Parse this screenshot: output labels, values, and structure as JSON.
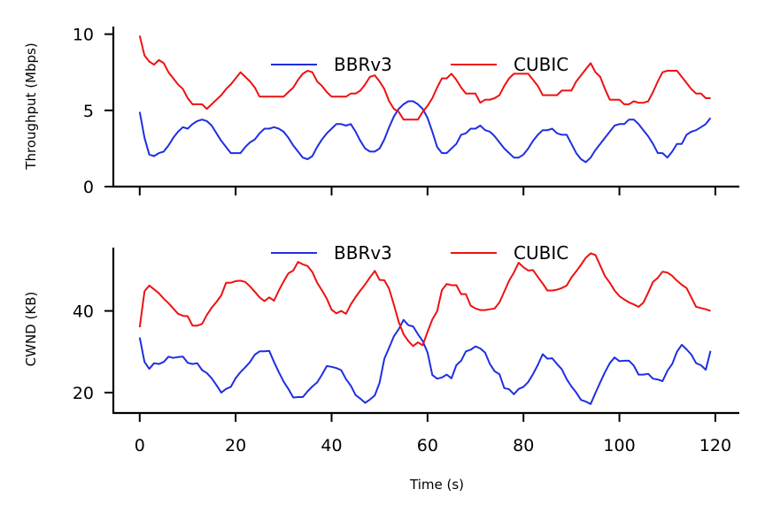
{
  "chart_data": [
    {
      "type": "line",
      "panel": "top",
      "ylabel": "Throughput (Mbps)",
      "xlabel": "",
      "xlim": [
        -5.5,
        125
      ],
      "ylim": [
        0,
        10.5
      ],
      "yticks": [
        0,
        5,
        10
      ],
      "ytick_labels": [
        "0",
        "5",
        "10"
      ],
      "xticks": [
        0,
        20,
        40,
        60,
        80,
        100,
        120
      ],
      "show_xtick_labels": false,
      "legend": {
        "placement": "top-center",
        "columns": 2
      },
      "series": [
        {
          "name": "BBRv3",
          "color": "#1f2fe0",
          "x": [
            0,
            1,
            2,
            3,
            4,
            5,
            6,
            7,
            8,
            9,
            10,
            11,
            12,
            13,
            14,
            15,
            16,
            17,
            18,
            19,
            20,
            21,
            22,
            23,
            24,
            25,
            26,
            27,
            28,
            29,
            30,
            31,
            32,
            33,
            34,
            35,
            36,
            37,
            38,
            39,
            40,
            41,
            42,
            43,
            44,
            45,
            46,
            47,
            48,
            49,
            50,
            51,
            52,
            53,
            54,
            55,
            56,
            57,
            58,
            59,
            60,
            61,
            62,
            63,
            64,
            65,
            66,
            67,
            68,
            69,
            70,
            71,
            72,
            73,
            74,
            75,
            76,
            77,
            78,
            79,
            80,
            81,
            82,
            83,
            84,
            85,
            86,
            87,
            88,
            89,
            90,
            91,
            92,
            93,
            94,
            95,
            96,
            97,
            98,
            99,
            100,
            101,
            102,
            103,
            104,
            105,
            106,
            107,
            108,
            109,
            110,
            111,
            112,
            113,
            114,
            115,
            116,
            117,
            118,
            119
          ],
          "values": [
            4.9,
            3.2,
            2.1,
            2.0,
            2.2,
            2.3,
            2.7,
            3.2,
            3.6,
            3.9,
            3.8,
            4.1,
            4.3,
            4.4,
            4.3,
            4.0,
            3.5,
            3.0,
            2.6,
            2.2,
            2.2,
            2.2,
            2.6,
            2.9,
            3.1,
            3.5,
            3.8,
            3.8,
            3.9,
            3.8,
            3.6,
            3.2,
            2.7,
            2.3,
            1.9,
            1.8,
            2.0,
            2.6,
            3.1,
            3.5,
            3.8,
            4.1,
            4.1,
            4.0,
            4.1,
            3.6,
            3.0,
            2.5,
            2.3,
            2.3,
            2.5,
            3.1,
            3.9,
            4.6,
            5.1,
            5.4,
            5.6,
            5.6,
            5.4,
            5.1,
            4.5,
            3.6,
            2.6,
            2.2,
            2.2,
            2.5,
            2.8,
            3.4,
            3.5,
            3.8,
            3.8,
            4.0,
            3.7,
            3.6,
            3.3,
            2.9,
            2.5,
            2.2,
            1.9,
            1.9,
            2.1,
            2.5,
            3.0,
            3.4,
            3.7,
            3.7,
            3.8,
            3.5,
            3.4,
            3.4,
            2.8,
            2.2,
            1.8,
            1.6,
            1.9,
            2.4,
            2.8,
            3.2,
            3.6,
            4.0,
            4.1,
            4.1,
            4.4,
            4.4,
            4.1,
            3.7,
            3.3,
            2.8,
            2.2,
            2.2,
            1.9,
            2.3,
            2.8,
            2.8,
            3.4,
            3.6,
            3.7,
            3.9,
            4.1,
            4.5
          ]
        },
        {
          "name": "CUBIC",
          "color": "#ee1111",
          "x": [
            0,
            1,
            2,
            3,
            4,
            5,
            6,
            7,
            8,
            9,
            10,
            11,
            12,
            13,
            14,
            15,
            16,
            17,
            18,
            19,
            20,
            21,
            22,
            23,
            24,
            25,
            26,
            27,
            28,
            29,
            30,
            31,
            32,
            33,
            34,
            35,
            36,
            37,
            38,
            39,
            40,
            41,
            42,
            43,
            44,
            45,
            46,
            47,
            48,
            49,
            50,
            51,
            52,
            53,
            54,
            55,
            56,
            57,
            58,
            59,
            60,
            61,
            62,
            63,
            64,
            65,
            66,
            67,
            68,
            69,
            70,
            71,
            72,
            73,
            74,
            75,
            76,
            77,
            78,
            79,
            80,
            81,
            82,
            83,
            84,
            85,
            86,
            87,
            88,
            89,
            90,
            91,
            92,
            93,
            94,
            95,
            96,
            97,
            98,
            99,
            100,
            101,
            102,
            103,
            104,
            105,
            106,
            107,
            108,
            109,
            110,
            111,
            112,
            113,
            114,
            115,
            116,
            117,
            118,
            119
          ],
          "values": [
            9.9,
            8.6,
            8.2,
            8.0,
            8.3,
            8.1,
            7.5,
            7.1,
            6.7,
            6.4,
            5.8,
            5.4,
            5.4,
            5.4,
            5.1,
            5.4,
            5.7,
            6.0,
            6.4,
            6.7,
            7.1,
            7.5,
            7.2,
            6.9,
            6.5,
            5.9,
            5.9,
            5.9,
            5.9,
            5.9,
            5.9,
            6.2,
            6.5,
            7.0,
            7.4,
            7.6,
            7.5,
            6.9,
            6.6,
            6.2,
            5.9,
            5.9,
            5.9,
            5.9,
            6.1,
            6.1,
            6.3,
            6.7,
            7.2,
            7.3,
            6.9,
            6.4,
            5.6,
            5.1,
            4.9,
            4.4,
            4.4,
            4.4,
            4.4,
            4.9,
            5.3,
            5.8,
            6.5,
            7.1,
            7.1,
            7.4,
            7.0,
            6.5,
            6.1,
            6.1,
            6.1,
            5.5,
            5.7,
            5.7,
            5.8,
            6.0,
            6.6,
            7.1,
            7.4,
            7.4,
            7.4,
            7.4,
            7.0,
            6.6,
            6.0,
            6.0,
            6.0,
            6.0,
            6.3,
            6.3,
            6.3,
            6.9,
            7.3,
            7.7,
            8.1,
            7.5,
            7.2,
            6.4,
            5.7,
            5.7,
            5.7,
            5.4,
            5.4,
            5.6,
            5.5,
            5.5,
            5.6,
            6.2,
            6.9,
            7.5,
            7.6,
            7.6,
            7.6,
            7.2,
            6.8,
            6.4,
            6.1,
            6.1,
            5.8,
            5.8
          ]
        }
      ]
    },
    {
      "type": "line",
      "panel": "bottom",
      "ylabel": "CWND (KB)",
      "xlabel": "Time (s)",
      "xlim": [
        -5.5,
        125
      ],
      "ylim": [
        15,
        55.5
      ],
      "yticks": [
        20,
        40
      ],
      "ytick_labels": [
        "20",
        "40"
      ],
      "xticks": [
        0,
        20,
        40,
        60,
        80,
        100,
        120
      ],
      "xtick_labels": [
        "0",
        "20",
        "40",
        "60",
        "80",
        "100",
        "120"
      ],
      "legend": {
        "placement": "top-center",
        "columns": 2
      },
      "series": [
        {
          "name": "BBRv3",
          "color": "#1f2fe0",
          "x": [
            0,
            1,
            2,
            3,
            4,
            5,
            6,
            7,
            8,
            9,
            10,
            11,
            12,
            13,
            14,
            15,
            16,
            17,
            18,
            19,
            20,
            21,
            22,
            23,
            24,
            25,
            26,
            27,
            28,
            29,
            30,
            31,
            32,
            33,
            34,
            35,
            36,
            37,
            38,
            39,
            40,
            41,
            42,
            43,
            44,
            45,
            46,
            47,
            48,
            49,
            50,
            51,
            52,
            53,
            54,
            55,
            56,
            57,
            58,
            59,
            60,
            61,
            62,
            63,
            64,
            65,
            66,
            67,
            68,
            69,
            70,
            71,
            72,
            73,
            74,
            75,
            76,
            77,
            78,
            79,
            80,
            81,
            82,
            83,
            84,
            85,
            86,
            87,
            88,
            89,
            90,
            91,
            92,
            93,
            94,
            95,
            96,
            97,
            98,
            99,
            100,
            101,
            102,
            103,
            104,
            105,
            106,
            107,
            108,
            109,
            110,
            111,
            112,
            113,
            114,
            115,
            116,
            117,
            118,
            119
          ],
          "values": [
            33.5,
            27.5,
            25.8,
            27.2,
            27.0,
            27.5,
            28.8,
            28.5,
            28.7,
            28.8,
            27.3,
            27.0,
            27.2,
            25.5,
            24.8,
            23.5,
            21.8,
            20.0,
            20.9,
            21.4,
            23.5,
            25.0,
            26.2,
            27.5,
            29.3,
            30.1,
            30.1,
            30.2,
            27.5,
            25.0,
            22.7,
            20.9,
            18.8,
            18.9,
            18.9,
            20.3,
            21.5,
            22.5,
            24.4,
            26.5,
            26.3,
            26.0,
            25.5,
            23.3,
            21.7,
            19.4,
            18.5,
            17.5,
            18.3,
            19.3,
            22.4,
            28.3,
            31.0,
            33.8,
            35.5,
            37.8,
            36.5,
            36.2,
            34.3,
            32.6,
            29.8,
            24.3,
            23.4,
            23.7,
            24.4,
            23.5,
            26.7,
            27.8,
            30.1,
            30.5,
            31.3,
            30.8,
            29.8,
            27.0,
            25.2,
            24.5,
            21.1,
            20.8,
            19.6,
            20.9,
            21.4,
            22.6,
            24.5,
            26.8,
            29.4,
            28.3,
            28.4,
            27.0,
            25.7,
            23.3,
            21.5,
            20.0,
            18.2,
            17.8,
            17.2,
            19.9,
            22.5,
            25.0,
            27.2,
            28.6,
            27.7,
            27.8,
            27.8,
            26.6,
            24.4,
            24.4,
            24.6,
            23.4,
            23.2,
            22.8,
            25.3,
            27.0,
            30.0,
            31.7,
            30.6,
            29.3,
            27.2,
            26.7,
            25.6,
            30.2
          ]
        },
        {
          "name": "CUBIC",
          "color": "#ee1111",
          "x": [
            0,
            1,
            2,
            3,
            4,
            5,
            6,
            7,
            8,
            9,
            10,
            11,
            12,
            13,
            14,
            15,
            16,
            17,
            18,
            19,
            20,
            21,
            22,
            23,
            24,
            25,
            26,
            27,
            28,
            29,
            30,
            31,
            32,
            33,
            34,
            35,
            36,
            37,
            38,
            39,
            40,
            41,
            42,
            43,
            44,
            45,
            46,
            47,
            48,
            49,
            50,
            51,
            52,
            53,
            54,
            55,
            56,
            57,
            58,
            59,
            60,
            61,
            62,
            63,
            64,
            65,
            66,
            67,
            68,
            69,
            70,
            71,
            72,
            73,
            74,
            75,
            76,
            77,
            78,
            79,
            80,
            81,
            82,
            83,
            84,
            85,
            86,
            87,
            88,
            89,
            90,
            91,
            92,
            93,
            94,
            95,
            96,
            97,
            98,
            99,
            100,
            101,
            102,
            103,
            104,
            105,
            106,
            107,
            108,
            109,
            110,
            111,
            112,
            113,
            114,
            115,
            116,
            117,
            118,
            119
          ],
          "values": [
            36.0,
            44.8,
            46.2,
            45.3,
            44.3,
            43.0,
            41.9,
            40.6,
            39.3,
            38.8,
            38.7,
            36.4,
            36.4,
            36.8,
            39.0,
            40.8,
            42.2,
            43.8,
            46.9,
            46.9,
            47.3,
            47.4,
            47.1,
            46.0,
            44.7,
            43.3,
            42.4,
            43.3,
            42.5,
            45.0,
            47.2,
            49.2,
            49.9,
            52.0,
            51.4,
            51.0,
            49.5,
            46.9,
            45.0,
            43.0,
            40.3,
            39.4,
            40.0,
            39.3,
            41.6,
            43.4,
            45.0,
            46.5,
            48.2,
            49.8,
            47.6,
            47.5,
            45.4,
            41.5,
            37.3,
            34.3,
            32.6,
            31.4,
            32.3,
            31.6,
            34.9,
            37.9,
            39.9,
            45.1,
            46.6,
            46.3,
            46.3,
            44.1,
            44.1,
            41.3,
            40.6,
            40.2,
            40.2,
            40.4,
            40.6,
            42.1,
            44.7,
            47.4,
            49.4,
            51.8,
            50.7,
            49.9,
            50.0,
            48.3,
            46.7,
            45.0,
            45.0,
            45.2,
            45.6,
            46.2,
            48.2,
            49.7,
            51.3,
            53.0,
            54.1,
            53.7,
            51.1,
            48.5,
            46.9,
            45.0,
            43.6,
            42.8,
            42.1,
            41.6,
            41.0,
            42.0,
            44.5,
            47.1,
            48.1,
            49.6,
            49.4,
            48.6,
            47.4,
            46.4,
            45.6,
            43.3,
            41.0,
            40.7,
            40.4,
            40.0
          ]
        }
      ]
    }
  ]
}
